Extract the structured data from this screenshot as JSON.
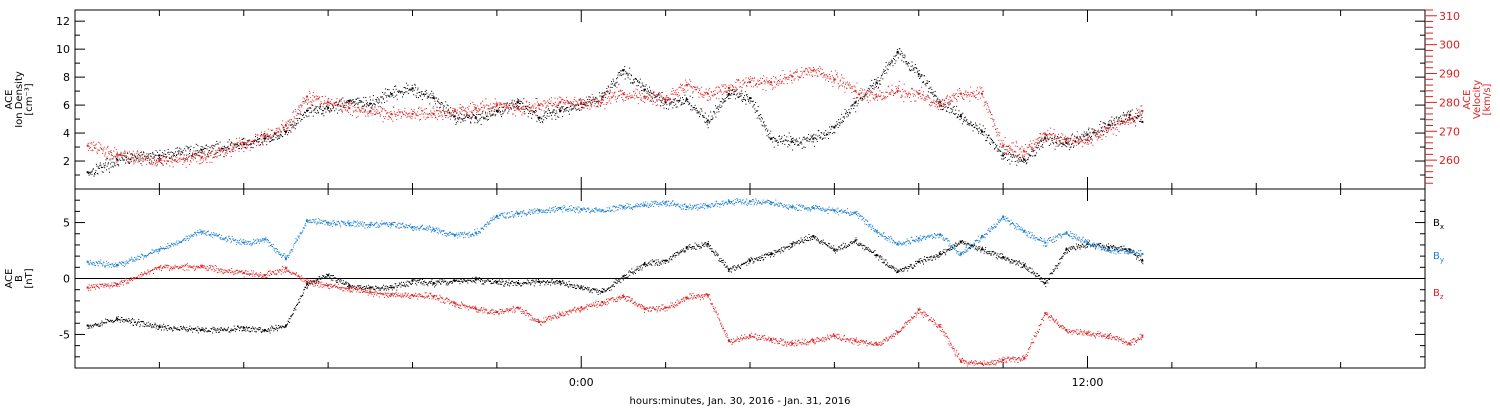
{
  "chart_data": [
    {
      "type": "scatter",
      "ylabel": "ACE\nIon Density\n[cm⁻³]",
      "ylabel_right": "ACE\nVelocity\n[km/s]",
      "ylim": [
        0,
        12.8
      ],
      "ylim_right": [
        250,
        312
      ],
      "yticks": [
        "2",
        "4",
        "6",
        "8",
        "10",
        "12"
      ],
      "yticks_right": [
        "260",
        "270",
        "280",
        "290",
        "300",
        "310"
      ],
      "xlim": [
        -12,
        20
      ],
      "series": [
        {
          "color": "#000000",
          "axis": "left",
          "x": [
            -11.7,
            -11,
            -10,
            -9,
            -8,
            -7.5,
            -7,
            -6.5,
            -6,
            -5.5,
            -5,
            -4.5,
            -4,
            -3.5,
            -3,
            -2.5,
            -2,
            -1.5,
            -1,
            -0.5,
            0,
            0.5,
            1,
            1.5,
            2,
            2.5,
            3,
            3.5,
            4,
            4.5,
            5,
            5.5,
            6,
            6.5,
            7,
            7.5,
            8,
            8.5,
            9,
            9.5,
            10,
            10.5,
            11,
            11.5,
            12,
            12.5,
            13,
            13.3
          ],
          "values": [
            1.2,
            2.1,
            2.4,
            2.8,
            3.2,
            3.6,
            4.1,
            5.6,
            5.8,
            6.3,
            6.1,
            6.8,
            7.2,
            6.5,
            5.2,
            5.1,
            5.6,
            6.2,
            5.1,
            5.6,
            6.1,
            6.6,
            8.5,
            7.1,
            6.2,
            6.4,
            4.9,
            6.8,
            6.5,
            3.6,
            3.4,
            3.6,
            4.4,
            6.2,
            7.6,
            9.8,
            8.2,
            6.2,
            5.2,
            4.1,
            2.4,
            2.1,
            3.6,
            3.3,
            3.9,
            4.6,
            5.3,
            4.8
          ]
        },
        {
          "color": "#e02020",
          "axis": "right",
          "x": [
            -11.7,
            -11,
            -10,
            -9,
            -8,
            -7.5,
            -7,
            -6.5,
            -6,
            -5.5,
            -5,
            -4.5,
            -4,
            -3.5,
            -3,
            -2.5,
            -2,
            -1.5,
            -1,
            -0.5,
            0,
            0.5,
            1,
            1.5,
            2,
            2.5,
            3,
            3.5,
            4,
            4.5,
            5,
            5.5,
            6,
            6.5,
            7,
            7.5,
            8,
            8.5,
            9,
            9.5,
            10,
            10.5,
            11,
            11.5,
            12,
            12.5,
            13,
            13.3
          ],
          "values": [
            265,
            262,
            260,
            261,
            266,
            268,
            272,
            282,
            280,
            278,
            277,
            276,
            276,
            276,
            277,
            278,
            279,
            278,
            279,
            280,
            280,
            281,
            283,
            282,
            281,
            286,
            283,
            285,
            287,
            287,
            289,
            291,
            288,
            284,
            282,
            284,
            283,
            279,
            283,
            283,
            265,
            263,
            269,
            267,
            267,
            271,
            274,
            277
          ]
        }
      ]
    },
    {
      "type": "scatter",
      "ylabel": "ACE\nB\n[nT]",
      "ylim": [
        -8,
        8
      ],
      "yticks": [
        "-5",
        "0",
        "5"
      ],
      "xlim": [
        -12,
        20
      ],
      "zero_line": true,
      "legend": [
        "Bx",
        "By",
        "Bz"
      ],
      "series": [
        {
          "name": "Bx",
          "color": "#000000",
          "x": [
            -11.7,
            -11,
            -10,
            -9,
            -8,
            -7.5,
            -7,
            -6.5,
            -6,
            -5.5,
            -5,
            -4.5,
            -4,
            -3.5,
            -3,
            -2.5,
            -2,
            -1.5,
            -1,
            -0.5,
            0,
            0.5,
            1,
            1.5,
            2,
            2.5,
            3,
            3.5,
            4,
            4.5,
            5,
            5.5,
            6,
            6.5,
            7,
            7.5,
            8,
            8.5,
            9,
            9.5,
            10,
            10.5,
            11,
            11.5,
            12,
            12.5,
            13,
            13.3
          ],
          "values": [
            -4.2,
            -3.6,
            -4.3,
            -4.6,
            -4.4,
            -4.6,
            -4.2,
            -0.5,
            0.3,
            -0.6,
            -0.8,
            -0.8,
            -0.2,
            -0.4,
            -0.2,
            -0.1,
            -0.3,
            -0.4,
            -0.3,
            -0.3,
            -0.8,
            -1.2,
            0.2,
            1.3,
            1.6,
            2.8,
            3.1,
            0.8,
            1.6,
            2.2,
            3.1,
            3.8,
            2.6,
            3.4,
            2.1,
            0.6,
            1.5,
            2.2,
            3.3,
            2.6,
            1.9,
            1.2,
            -0.4,
            2.6,
            3.1,
            2.8,
            2.6,
            1.6
          ]
        },
        {
          "name": "By",
          "color": "#1a7fd4",
          "x": [
            -11.7,
            -11,
            -10,
            -9,
            -8,
            -7.5,
            -7,
            -6.5,
            -6,
            -5.5,
            -5,
            -4.5,
            -4,
            -3.5,
            -3,
            -2.5,
            -2,
            -1.5,
            -1,
            -0.5,
            0,
            0.5,
            1,
            1.5,
            2,
            2.5,
            3,
            3.5,
            4,
            4.5,
            5,
            5.5,
            6,
            6.5,
            7,
            7.5,
            8,
            8.5,
            9,
            9.5,
            10,
            10.5,
            11,
            11.5,
            12,
            12.5,
            13,
            13.3
          ],
          "values": [
            1.5,
            1.2,
            2.6,
            4.2,
            3.2,
            3.5,
            1.8,
            5.2,
            5.0,
            4.9,
            4.8,
            4.9,
            4.6,
            4.4,
            3.9,
            4.1,
            5.6,
            5.8,
            6.1,
            6.3,
            6.2,
            6.1,
            6.4,
            6.6,
            6.8,
            6.4,
            6.5,
            6.9,
            6.9,
            6.8,
            6.4,
            6.3,
            6.1,
            5.9,
            4.2,
            3.1,
            3.6,
            3.9,
            2.2,
            3.8,
            5.5,
            4.2,
            3.2,
            4.1,
            3.2,
            2.6,
            2.4,
            2.2
          ]
        },
        {
          "name": "Bz",
          "color": "#e02020",
          "x": [
            -11.7,
            -11,
            -10,
            -9,
            -8,
            -7.5,
            -7,
            -6.5,
            -6,
            -5.5,
            -5,
            -4.5,
            -4,
            -3.5,
            -3,
            -2.5,
            -2,
            -1.5,
            -1,
            -0.5,
            0,
            0.5,
            1,
            1.5,
            2,
            2.5,
            3,
            3.5,
            4,
            4.5,
            5,
            5.5,
            6,
            6.5,
            7,
            7.5,
            8,
            8.5,
            9,
            9.5,
            10,
            10.5,
            11,
            11.5,
            12,
            12.5,
            13,
            13.3
          ],
          "values": [
            -0.8,
            -0.5,
            1.0,
            1.1,
            0.5,
            0.3,
            0.9,
            -0.3,
            -0.6,
            -0.9,
            -1.2,
            -1.4,
            -1.5,
            -1.6,
            -2.2,
            -2.7,
            -3.0,
            -2.6,
            -3.9,
            -3.2,
            -2.6,
            -2.1,
            -1.6,
            -2.7,
            -2.6,
            -1.7,
            -1.5,
            -5.6,
            -5.1,
            -5.4,
            -5.8,
            -5.5,
            -5.1,
            -5.6,
            -5.9,
            -4.8,
            -2.8,
            -4.3,
            -7.4,
            -7.6,
            -7.3,
            -7.1,
            -3.1,
            -4.6,
            -4.9,
            -5.1,
            -5.8,
            -5.1
          ]
        }
      ]
    }
  ],
  "xaxis": {
    "ticks": [
      {
        "x": 0,
        "label": "0:00"
      },
      {
        "x": 12,
        "label": "12:00"
      }
    ],
    "minor_step": 2,
    "label": "hours:minutes, Jan. 30, 2016 - Jan. 31, 2016"
  }
}
